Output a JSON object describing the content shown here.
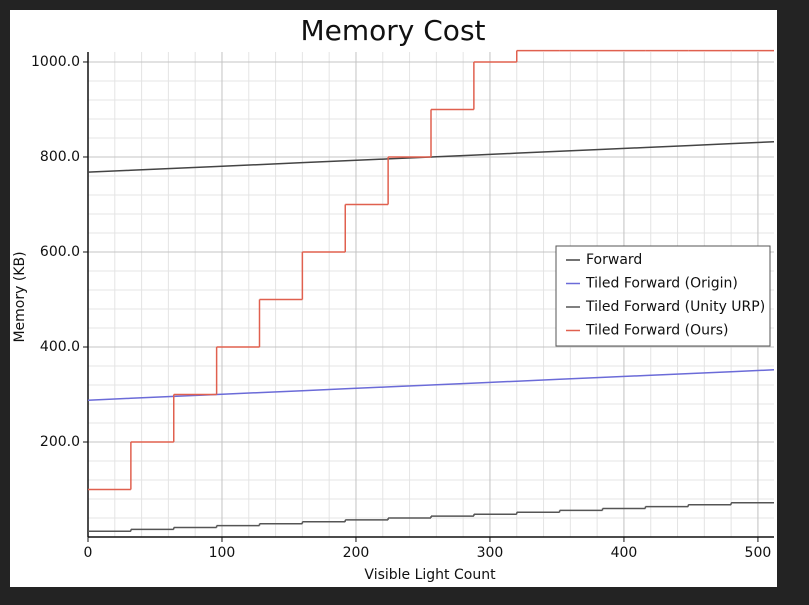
{
  "chart_data": {
    "type": "line",
    "title": "Memory Cost",
    "x_label": "Visible Light Count",
    "y_label": "Memory (KB)",
    "x": [
      0,
      32,
      64,
      96,
      128,
      160,
      192,
      224,
      256,
      288,
      320,
      352,
      384,
      416,
      448,
      480,
      512
    ],
    "series": [
      {
        "name": "Forward",
        "color": "#444444",
        "step": false,
        "values": [
          768,
          772,
          776,
          780,
          784,
          788,
          792,
          796,
          800,
          804,
          808,
          812,
          816,
          820,
          824,
          828,
          832
        ]
      },
      {
        "name": "Tiled Forward (Origin)",
        "color": "#6b6bd8",
        "step": false,
        "values": [
          288,
          292,
          296,
          300,
          304,
          308,
          312,
          316,
          320,
          324,
          328,
          332,
          336,
          340,
          344,
          348,
          352
        ]
      },
      {
        "name": "Tiled Forward (Unity URP)",
        "color": "#555555",
        "step": true,
        "values": [
          12,
          16,
          20,
          24,
          28,
          32,
          36,
          40,
          44,
          48,
          52,
          56,
          60,
          64,
          68,
          72,
          72
        ]
      },
      {
        "name": "Tiled Forward (Ours)",
        "color": "#e0604f",
        "step": true,
        "values": [
          100,
          200,
          300,
          400,
          500,
          600,
          700,
          800,
          900,
          1000,
          1024,
          1024,
          1024,
          1024,
          1024,
          1024,
          1024
        ]
      }
    ],
    "xlim": [
      0,
      512
    ],
    "ylim": [
      0,
      1021
    ],
    "xticks": [
      0,
      100,
      200,
      300,
      400,
      500
    ],
    "yticks": [
      {
        "value": 200,
        "label": "200.0"
      },
      {
        "value": 400,
        "label": "400.0"
      },
      {
        "value": 600,
        "label": "600.0"
      },
      {
        "value": 800,
        "label": "800.0"
      },
      {
        "value": 1000,
        "label": "1000.0"
      }
    ],
    "grid": true,
    "minor_grid": true,
    "legend": "center right"
  }
}
